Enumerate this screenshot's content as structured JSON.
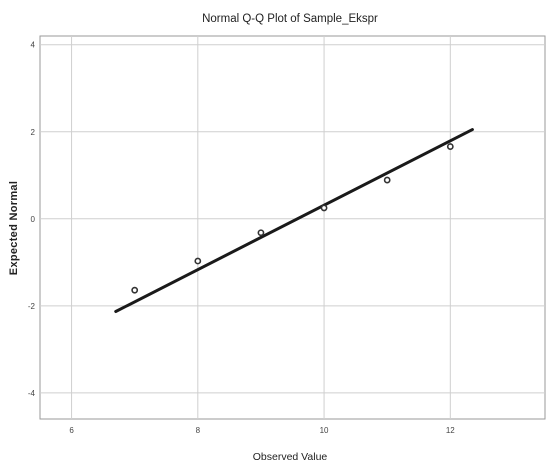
{
  "chart_data": {
    "type": "scatter",
    "title": "Normal Q-Q Plot of Sample_Ekspr",
    "xlabel": "Observed Value",
    "ylabel": "Expected Normal",
    "xlim": [
      5.5,
      13.5
    ],
    "ylim": [
      -4.6,
      4.2
    ],
    "x_ticks": [
      6,
      8,
      10,
      12
    ],
    "y_ticks": [
      -4,
      -2,
      0,
      2,
      4
    ],
    "grid": true,
    "points": [
      {
        "x": 7,
        "y": -1.64
      },
      {
        "x": 8,
        "y": -0.97
      },
      {
        "x": 9,
        "y": -0.32
      },
      {
        "x": 10,
        "y": 0.25
      },
      {
        "x": 11,
        "y": 0.89
      },
      {
        "x": 12,
        "y": 1.66
      }
    ],
    "reference_line": {
      "x": [
        6.7,
        12.35
      ],
      "y": [
        -2.13,
        2.05
      ]
    },
    "colors": {
      "line": "#1a1a1a",
      "points": "#333333",
      "grid": "#cfcfcf",
      "frame": "#9a9a9a"
    }
  }
}
